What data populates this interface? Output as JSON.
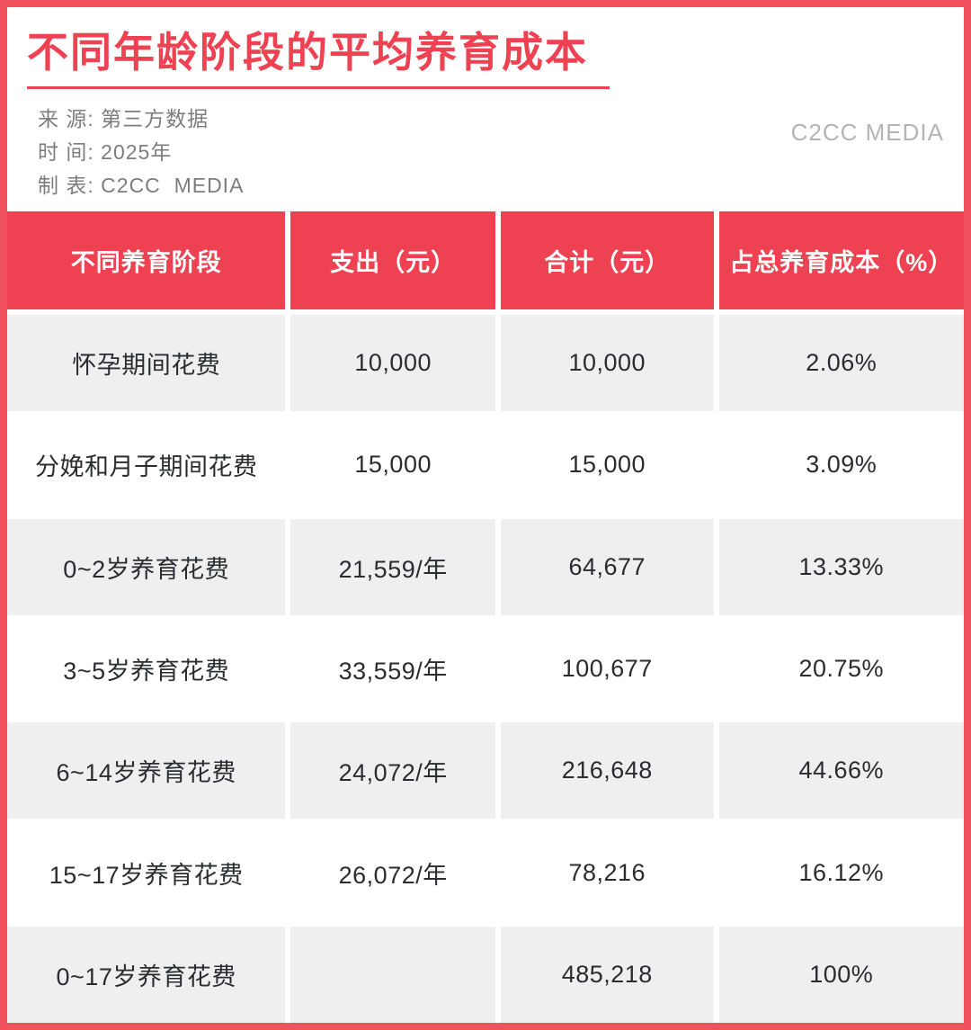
{
  "header": {
    "title": "不同年龄阶段的平均养育成本",
    "watermark": "C2CC MEDIA",
    "meta": [
      "来 源: 第三方数据",
      "时 间: 2025年",
      "制 表: C2CC  MEDIA"
    ]
  },
  "colors": {
    "red_primary": "#ee4151",
    "red_border": "#f1525e",
    "row_gray": "#efeff0",
    "text_dark": "#2b2c30",
    "meta_gray": "#7d7d7d",
    "watermark_gray": "#b4b4b6"
  },
  "chart_data": {
    "type": "table",
    "title": "不同年龄阶段的平均养育成本",
    "columns": [
      "不同养育阶段",
      "支出（元）",
      "合计（元）",
      "占总养育成本（%）"
    ],
    "rows": [
      [
        "怀孕期间花费",
        "10,000",
        "10,000",
        "2.06%"
      ],
      [
        "分娩和月子期间花费",
        "15,000",
        "15,000",
        "3.09%"
      ],
      [
        "0~2岁养育花费",
        "21,559/年",
        "64,677",
        "13.33%"
      ],
      [
        "3~5岁养育花费",
        "33,559/年",
        "100,677",
        "20.75%"
      ],
      [
        "6~14岁养育花费",
        "24,072/年",
        "216,648",
        "44.66%"
      ],
      [
        "15~17岁养育花费",
        "26,072/年",
        "78,216",
        "16.12%"
      ],
      [
        "0~17岁养育花费",
        "",
        "485,218",
        "100%"
      ]
    ]
  }
}
